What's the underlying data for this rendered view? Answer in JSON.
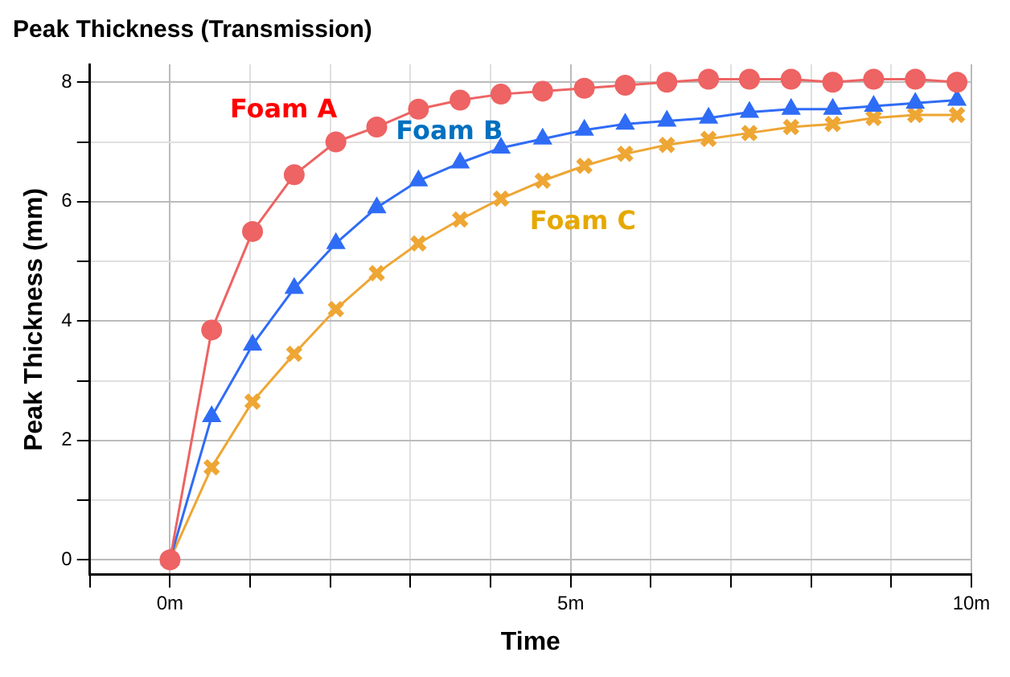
{
  "chart_data": {
    "type": "line",
    "title": "Peak Thickness (Transmission)",
    "xlabel": "Time",
    "ylabel": "Peak Thickness (mm)",
    "x": [
      0,
      0.52,
      1.03,
      1.55,
      2.07,
      2.58,
      3.1,
      3.62,
      4.13,
      4.65,
      5.17,
      5.68,
      6.2,
      6.72,
      7.23,
      7.75,
      8.27,
      8.78,
      9.3,
      9.82
    ],
    "series": [
      {
        "name": "Foam A",
        "color": "#ee6363",
        "marker": "circle",
        "values": [
          0,
          3.85,
          5.5,
          6.45,
          7.0,
          7.25,
          7.55,
          7.7,
          7.8,
          7.85,
          7.9,
          7.95,
          8.0,
          8.05,
          8.05,
          8.05,
          8.0,
          8.05,
          8.05,
          8.0
        ]
      },
      {
        "name": "Foam B",
        "color": "#2f6cf6",
        "marker": "triangle",
        "values": [
          0,
          2.4,
          3.6,
          4.55,
          5.3,
          5.9,
          6.35,
          6.65,
          6.9,
          7.05,
          7.2,
          7.3,
          7.35,
          7.4,
          7.5,
          7.55,
          7.55,
          7.6,
          7.65,
          7.7
        ]
      },
      {
        "name": "Foam C",
        "color": "#eea634",
        "marker": "cross",
        "values": [
          0,
          1.55,
          2.65,
          3.45,
          4.2,
          4.8,
          5.3,
          5.7,
          6.05,
          6.35,
          6.6,
          6.8,
          6.95,
          7.05,
          7.15,
          7.25,
          7.3,
          7.4,
          7.45,
          7.45
        ]
      }
    ],
    "xlim": [
      -1,
      10
    ],
    "xticks": [
      {
        "value": -1,
        "label": null
      },
      {
        "value": 0,
        "label": "0m"
      },
      {
        "value": 1,
        "label": null
      },
      {
        "value": 2,
        "label": null
      },
      {
        "value": 3,
        "label": null
      },
      {
        "value": 4,
        "label": null
      },
      {
        "value": 5,
        "label": "5m"
      },
      {
        "value": 6,
        "label": null
      },
      {
        "value": 7,
        "label": null
      },
      {
        "value": 8,
        "label": null
      },
      {
        "value": 9,
        "label": null
      },
      {
        "value": 10,
        "label": "10m"
      }
    ],
    "ylim": [
      -0.25,
      8.3
    ],
    "yticks": [
      0,
      {
        "value": 1,
        "label": null
      },
      2,
      {
        "value": 3,
        "label": null
      },
      4,
      {
        "value": 5,
        "label": null
      },
      6,
      {
        "value": 7,
        "label": null
      },
      8
    ],
    "grid": true,
    "legend": false
  }
}
